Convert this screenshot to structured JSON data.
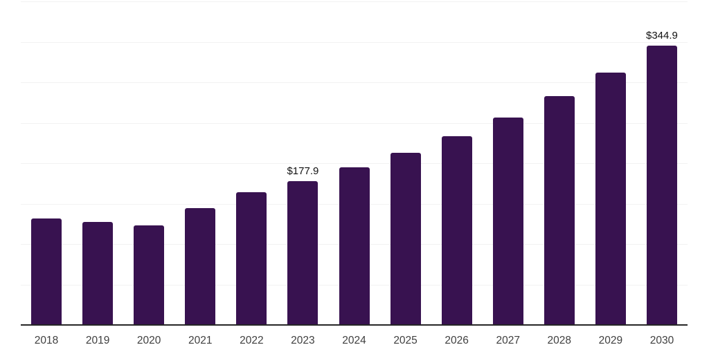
{
  "chart_data": {
    "type": "bar",
    "title": "",
    "xlabel": "",
    "ylabel": "",
    "categories": [
      "2018",
      "2019",
      "2020",
      "2021",
      "2022",
      "2023",
      "2024",
      "2025",
      "2026",
      "2027",
      "2028",
      "2029",
      "2030"
    ],
    "values": [
      131.6,
      127.4,
      123.1,
      144.4,
      164.1,
      177.9,
      194.9,
      212.8,
      233.0,
      256.4,
      282.9,
      312.0,
      344.9
    ],
    "shown_value_labels": [
      "",
      "",
      "",
      "",
      "",
      "$177.9",
      "",
      "",
      "",
      "",
      "",
      "",
      "$344.9"
    ],
    "ylim": [
      0,
      400
    ],
    "gridline_step": 50,
    "grid": "horizontal",
    "legend_position": "none",
    "y_axis_tick_labels_visible": false,
    "colors": {
      "bar": "#381250",
      "gridline": "#f2f2f2",
      "axis_line": "#262626",
      "x_tick_label": "#3f3f3f",
      "value_label": "#111111",
      "background": "#ffffff"
    }
  }
}
